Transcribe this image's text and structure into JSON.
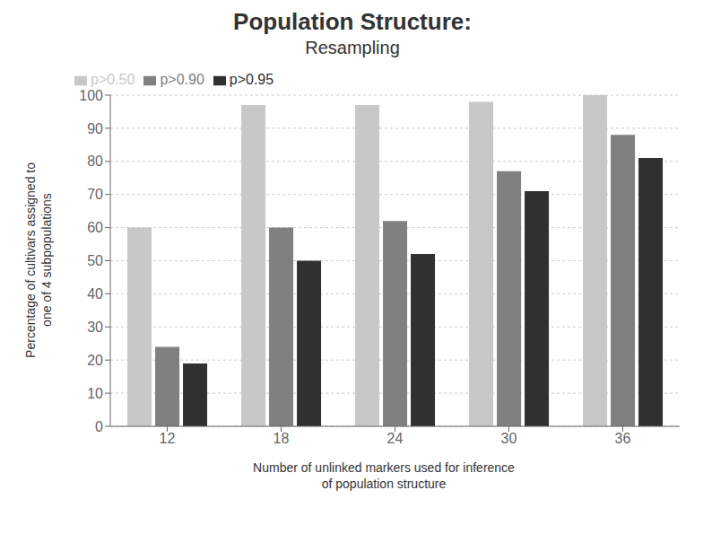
{
  "chart_data": {
    "type": "bar",
    "title": "Population Structure:",
    "subtitle": "Resampling",
    "xlabel": "Number of unlinked markers used for inference\nof population structure",
    "ylabel": "Percentage of cultivars assigned to\none of 4 subpopulations",
    "categories": [
      "12",
      "18",
      "24",
      "30",
      "36"
    ],
    "series": [
      {
        "name": "p>0.50",
        "color": "#c8c8c8",
        "values": [
          60,
          97,
          97,
          98,
          100
        ]
      },
      {
        "name": "p>0.90",
        "color": "#808080",
        "values": [
          24,
          60,
          62,
          77,
          88
        ]
      },
      {
        "name": "p>0.95",
        "color": "#303030",
        "values": [
          19,
          50,
          52,
          71,
          81
        ]
      }
    ],
    "ylim": [
      0,
      100
    ],
    "yticks": [
      0,
      10,
      20,
      30,
      40,
      50,
      60,
      70,
      80,
      90,
      100
    ],
    "grid": true,
    "legend": "upper left"
  }
}
